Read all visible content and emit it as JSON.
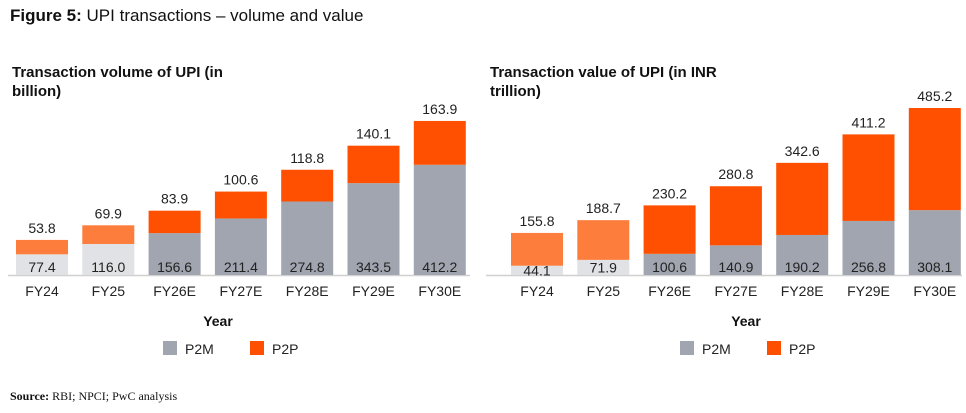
{
  "figure": {
    "label": "Figure 5:",
    "title": "UPI transactions – volume and value"
  },
  "colors": {
    "p2m": "#a1a5b0",
    "p2p": "#fe5000",
    "p2m_actual": "#e0e2e5",
    "p2p_actual": "#fd7e3c"
  },
  "chart_data": [
    {
      "type": "bar",
      "stacked": true,
      "title": "Transaction volume of UPI (in billion)",
      "xlabel": "Year",
      "categories": [
        "FY24",
        "FY25",
        "FY26E",
        "FY27E",
        "FY28E",
        "FY29E",
        "FY30E"
      ],
      "series": [
        {
          "name": "P2M",
          "values": [
            77.4,
            116.0,
            156.6,
            211.4,
            274.8,
            343.5,
            412.2
          ]
        },
        {
          "name": "P2P",
          "values": [
            53.8,
            69.9,
            83.9,
            100.6,
            118.8,
            140.1,
            163.9
          ]
        }
      ],
      "legend": [
        "P2M",
        "P2P"
      ],
      "legend_position": "bottom"
    },
    {
      "type": "bar",
      "stacked": true,
      "title": "Transaction value of UPI (in INR trillion)",
      "xlabel": "Year",
      "categories": [
        "FY24",
        "FY25",
        "FY26E",
        "FY27E",
        "FY28E",
        "FY29E",
        "FY30E"
      ],
      "series": [
        {
          "name": "P2M",
          "values": [
            44.1,
            71.9,
            100.6,
            140.9,
            190.2,
            256.8,
            308.1
          ]
        },
        {
          "name": "P2P",
          "values": [
            155.8,
            188.7,
            230.2,
            280.8,
            342.6,
            411.2,
            485.2
          ]
        }
      ],
      "legend": [
        "P2M",
        "P2P"
      ],
      "legend_position": "bottom"
    }
  ],
  "source": {
    "label": "Source:",
    "text": "RBI; NPCI; PwC analysis"
  }
}
